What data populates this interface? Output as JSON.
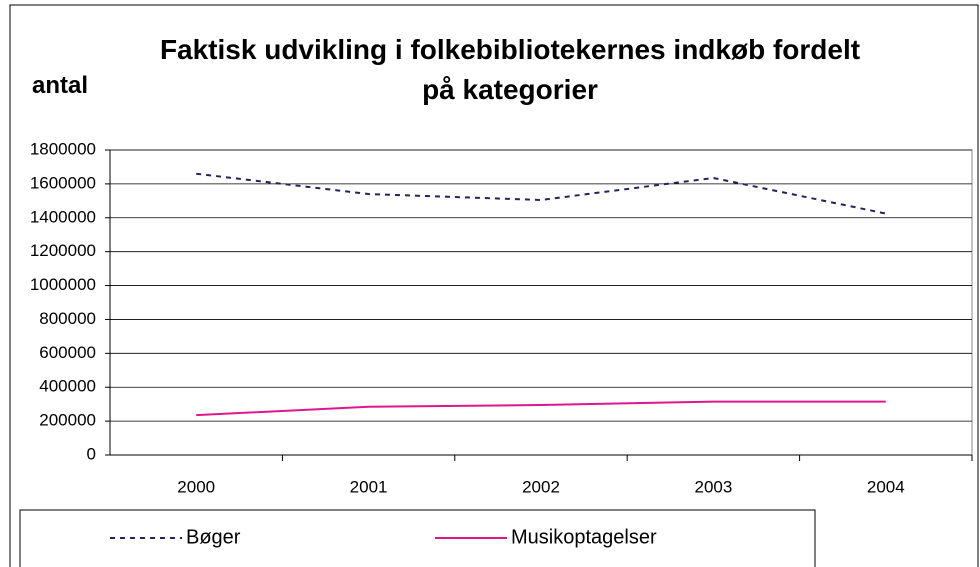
{
  "chart_data": {
    "type": "line",
    "title": "Faktisk udvikling i folkebibliotekernes indkøb fordelt på kategorier",
    "y_label": "antal",
    "categories": [
      "2000",
      "2001",
      "2002",
      "2003",
      "2004"
    ],
    "series": [
      {
        "name": "Bøger",
        "color": "#23235e",
        "dash": true,
        "values": [
          1660000,
          1540000,
          1505000,
          1635000,
          1425000
        ]
      },
      {
        "name": "Musikoptagelser",
        "color": "#e0168f",
        "dash": false,
        "values": [
          235000,
          285000,
          295000,
          315000,
          315000
        ]
      }
    ],
    "ylim": [
      0,
      1800000
    ],
    "yticks": [
      0,
      200000,
      400000,
      600000,
      800000,
      1000000,
      1200000,
      1400000,
      1600000,
      1800000
    ],
    "grid": true,
    "legend": "bottom"
  }
}
